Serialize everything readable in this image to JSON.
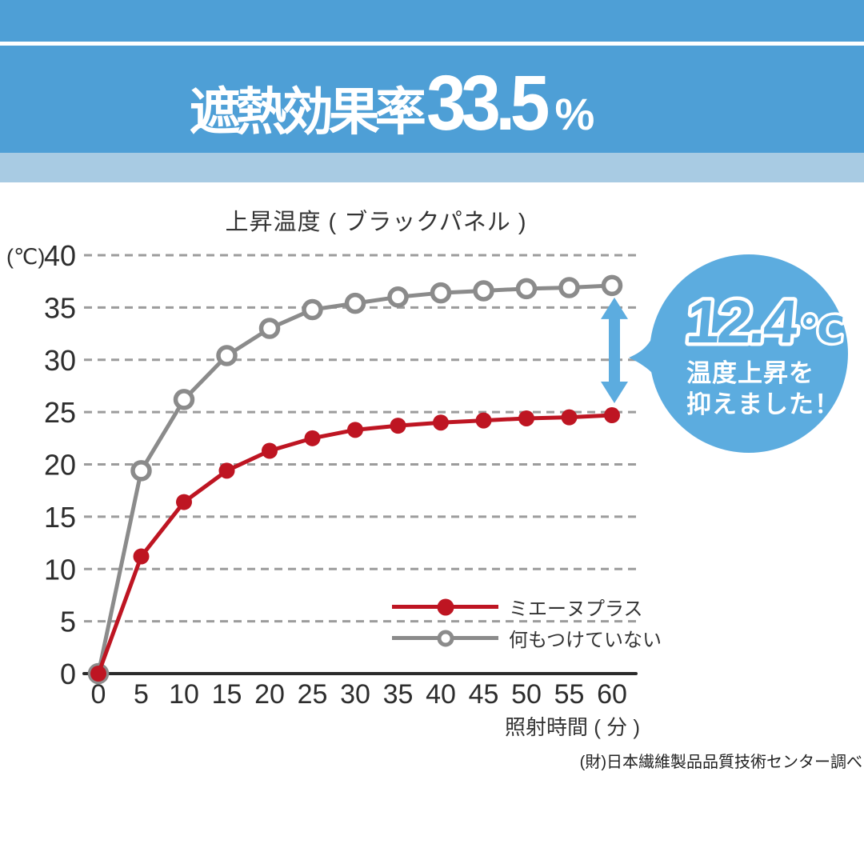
{
  "banner": {
    "prefix": "遮熱効果率",
    "value": "33.5",
    "unit": "%"
  },
  "chart_data": {
    "type": "line",
    "title": "上昇温度 ( ブラックパネル )",
    "y_unit": "(℃)",
    "xlabel": "照射時間 ( 分 )",
    "x": [
      0,
      5,
      10,
      15,
      20,
      25,
      30,
      35,
      40,
      45,
      50,
      55,
      60
    ],
    "xlim": [
      0,
      60
    ],
    "ylim": [
      0,
      40
    ],
    "xtick_step": 5,
    "ytick_step": 5,
    "grid": "horizontal-dashed",
    "legend_position": "inside-bottom-right",
    "series": [
      {
        "name": "ミエーヌプラス",
        "color": "#BE1522",
        "marker": "filled-circle",
        "values": [
          0,
          11.2,
          16.4,
          19.4,
          21.3,
          22.5,
          23.3,
          23.7,
          24.0,
          24.2,
          24.4,
          24.5,
          24.7
        ]
      },
      {
        "name": "何もつけていない",
        "color": "#8B8B8B",
        "marker": "open-circle",
        "values": [
          0,
          19.4,
          26.2,
          30.4,
          33.0,
          34.8,
          35.4,
          36.0,
          36.4,
          36.6,
          36.8,
          36.9,
          37.1
        ]
      }
    ],
    "annotation": {
      "arrow_at_x": 60,
      "delta_label": "12.4",
      "delta_unit": "℃",
      "lines": [
        "温度上昇を",
        "抑えました！"
      ]
    }
  },
  "source": "(財)日本繊維製品品質技術センター調べ",
  "colors": {
    "banner_blue": "#4E9FD6",
    "light_blue": "#A8CBE3",
    "bubble_blue": "#5CACDF",
    "series_red": "#BE1522",
    "series_gray": "#8B8B8B"
  }
}
